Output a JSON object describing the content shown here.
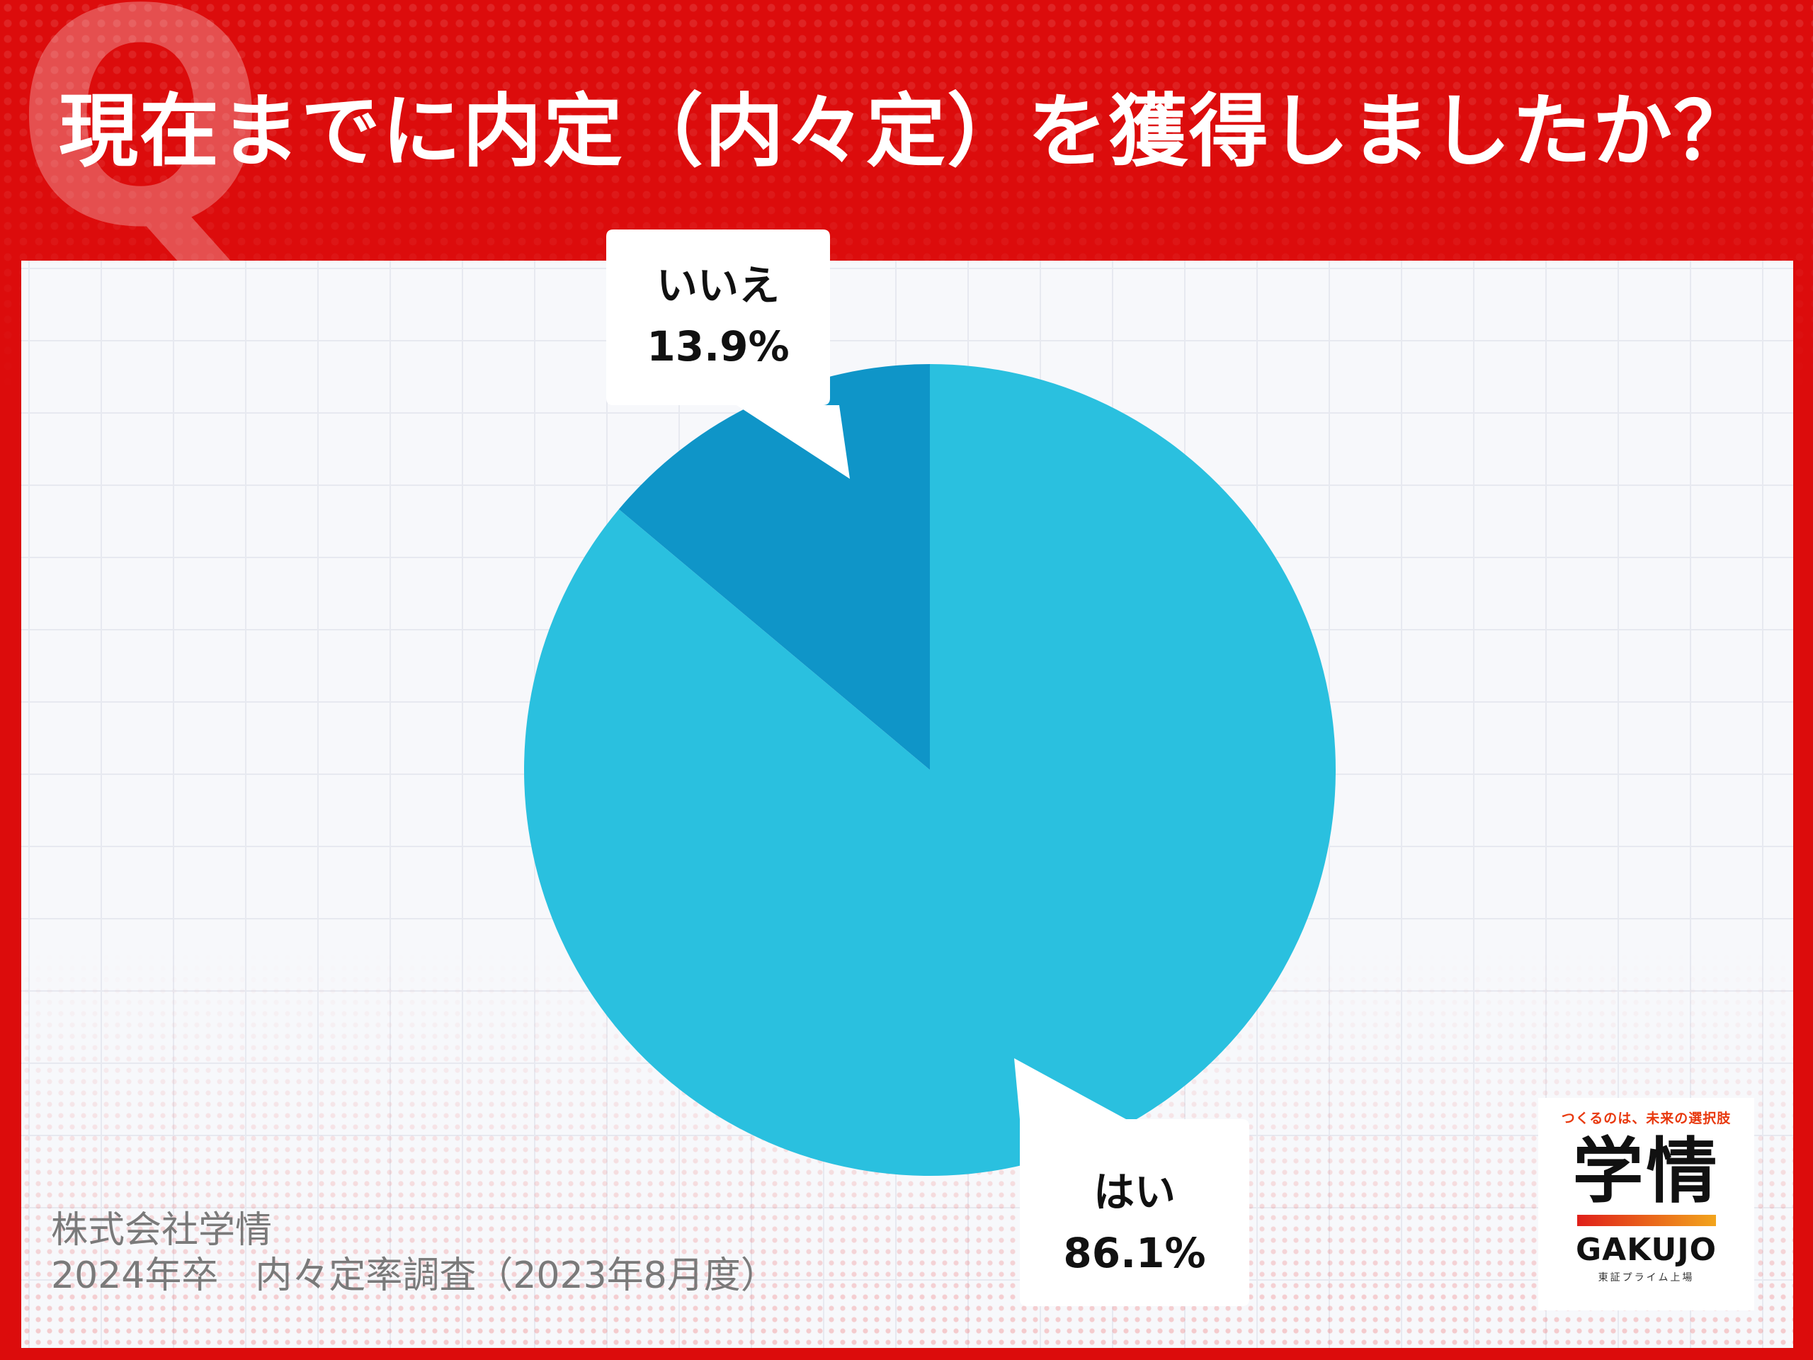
{
  "title": "現在までに内定（内々定）を獲得しましたか？",
  "watermark_letter": "Q",
  "source": {
    "line1": "株式会社学情",
    "line2": "2024年卒　内々定率調査（2023年8月度）"
  },
  "logo": {
    "tagline": "つくるのは、未来の選択肢",
    "kanji": "学情",
    "english": "GAKUJO",
    "listing": "東証プライム上場"
  },
  "colors": {
    "background": "#dc0c0c",
    "yes": "#2ac0df",
    "no": "#0f95c8"
  },
  "chart_data": {
    "type": "pie",
    "title": "現在までに内定（内々定）を獲得しましたか？",
    "slices": [
      {
        "label": "いいえ",
        "value": 13.9,
        "display": "13.9%",
        "color": "#0f95c8"
      },
      {
        "label": "はい",
        "value": 86.1,
        "display": "86.1%",
        "color": "#2ac0df"
      }
    ],
    "start": "12 o'clock",
    "direction": "counter-clockwise for いいえ, clockwise for はい"
  }
}
